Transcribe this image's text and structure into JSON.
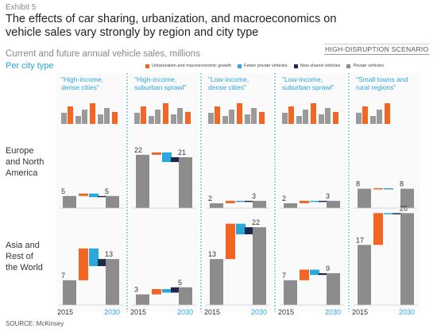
{
  "header": {
    "exhibit": "Exhibit 5",
    "title": "The effects of car sharing, urbanization, and macroeconomics on vehicle sales vary strongly by region and city type",
    "subtitle": "Current and future annual vehicle sales, millions",
    "scenario": "HIGH-DISRUPTION SCENARIO",
    "per_city": "Per city type"
  },
  "legend": [
    {
      "label": "Urbanization and macroeconomic growth",
      "color": "#f26522"
    },
    {
      "label": "Fewer private vehicles",
      "color": "#2aa7dc"
    },
    {
      "label": "New shared vehicles",
      "color": "#1b2a4a"
    },
    {
      "label": "Private vehicles",
      "color": "#8c8c8c"
    }
  ],
  "regions": [
    "Europe\nand North\nAmerica",
    "Asia and\nRest of\nthe World"
  ],
  "source": "SOURCE: McKinsey",
  "chart_data": {
    "type": "bar",
    "subtype": "waterfall small multiples",
    "title": "The effects of car sharing, urbanization, and macroeconomics on vehicle sales vary strongly by region and city type",
    "ylabel": "Current and future annual vehicle sales, millions",
    "x_labels": [
      "2015",
      "2030"
    ],
    "columns": [
      "\"High-income, dense cities\"",
      "\"High-income, suburban sprawl\"",
      "\"Low-income, dense cities\"",
      "\"Low-income, suburban sprawl\"",
      "\"Small towns and rural regions\""
    ],
    "panels": [
      {
        "region": "Europe and North America",
        "column": 0,
        "start": 5,
        "growth": 1,
        "fewer": -1.5,
        "shared": 0.5,
        "end": 5
      },
      {
        "region": "Europe and North America",
        "column": 1,
        "start": 22,
        "growth": 1,
        "fewer": -4,
        "shared": 2,
        "end": 21
      },
      {
        "region": "Europe and North America",
        "column": 2,
        "start": 2,
        "growth": 1,
        "fewer": -0.4,
        "shared": 0.4,
        "end": 3
      },
      {
        "region": "Europe and North America",
        "column": 3,
        "start": 2,
        "growth": 1,
        "fewer": -0.4,
        "shared": 0.4,
        "end": 3
      },
      {
        "region": "Europe and North America",
        "column": 4,
        "start": 8,
        "growth": 0.2,
        "fewer": -0.2,
        "shared": 0,
        "end": 8
      },
      {
        "region": "Asia and Rest of the World",
        "column": 0,
        "start": 7,
        "growth": 9,
        "fewer": -5,
        "shared": 2,
        "end": 13
      },
      {
        "region": "Asia and Rest of the World",
        "column": 1,
        "start": 3,
        "growth": 1.5,
        "fewer": -1,
        "shared": 1.5,
        "end": 5
      },
      {
        "region": "Asia and Rest of the World",
        "column": 2,
        "start": 13,
        "growth": 10,
        "fewer": -3,
        "shared": 2,
        "end": 22
      },
      {
        "region": "Asia and Rest of the World",
        "column": 3,
        "start": 7,
        "growth": 3,
        "fewer": -1.5,
        "shared": 0.5,
        "end": 9
      },
      {
        "region": "Asia and Rest of the World",
        "column": 4,
        "start": 17,
        "growth": 9,
        "fewer": -0.3,
        "shared": 0.3,
        "end": 26
      }
    ],
    "colors": {
      "private": "#8c8c8c",
      "growth": "#f26522",
      "fewer": "#2aa7dc",
      "shared": "#1b2a4a"
    }
  }
}
